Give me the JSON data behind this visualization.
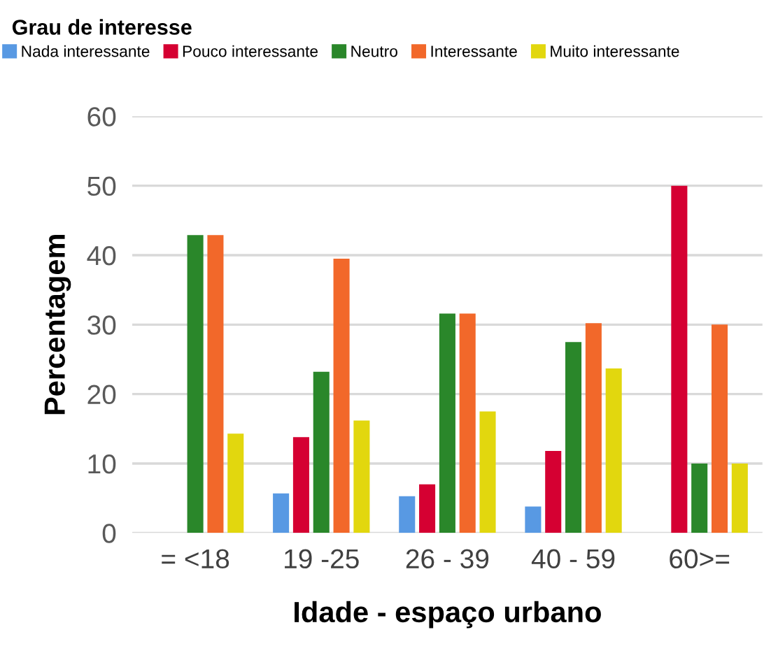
{
  "chart_data": {
    "type": "bar",
    "legend_title": "Grau de interesse",
    "xlabel": "Idade - espaço urbano",
    "ylabel": "Percentagem",
    "categories": [
      "= <18",
      "19 -25",
      "26 - 39",
      "40 - 59",
      "60>="
    ],
    "series": [
      {
        "name": "Nada interessante",
        "color": "#5899e3",
        "values": [
          0,
          5.7,
          5.3,
          3.8,
          0
        ]
      },
      {
        "name": "Pouco interessante",
        "color": "#d50032",
        "values": [
          0,
          13.8,
          7,
          11.8,
          50
        ]
      },
      {
        "name": "Neutro",
        "color": "#2a872a",
        "values": [
          42.9,
          23.2,
          31.6,
          27.5,
          10
        ]
      },
      {
        "name": "Interessante",
        "color": "#f2682a",
        "values": [
          42.9,
          39.5,
          31.6,
          30.2,
          30
        ]
      },
      {
        "name": "Muito interessante",
        "color": "#e2d70e",
        "values": [
          14.3,
          16.2,
          17.5,
          23.7,
          10
        ]
      }
    ],
    "ylim": [
      0,
      60
    ],
    "yticks": [
      0,
      10,
      20,
      30,
      40,
      50,
      60
    ],
    "grid": "y",
    "legend": "top"
  }
}
